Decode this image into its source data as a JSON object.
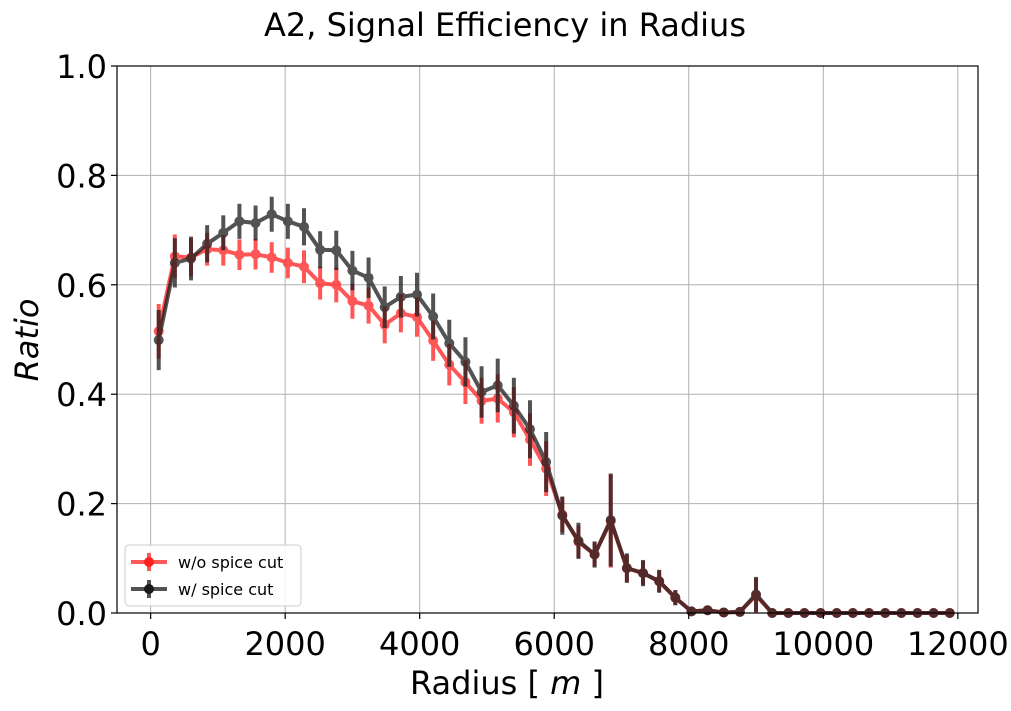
{
  "chart_data": {
    "type": "line",
    "title": "A2, Signal Efficiency in Radius",
    "xlabel_pre": "Radius [ ",
    "xlabel_unit": "m",
    "xlabel_post": " ]",
    "ylabel": "Ratio",
    "xlim": [
      -500,
      12300
    ],
    "ylim": [
      0,
      1.0
    ],
    "xticks": [
      0,
      2000,
      4000,
      6000,
      8000,
      10000,
      12000
    ],
    "xtick_labels": [
      "0",
      "2000",
      "4000",
      "6000",
      "8000",
      "10000",
      "12000"
    ],
    "yticks": [
      0.0,
      0.2,
      0.4,
      0.6,
      0.8,
      1.0
    ],
    "ytick_labels": [
      "0.0",
      "0.2",
      "0.4",
      "0.6",
      "0.8",
      "1.0"
    ],
    "grid": true,
    "legend_position": "lower-left",
    "x": [
      120,
      360,
      600,
      840,
      1080,
      1320,
      1560,
      1800,
      2040,
      2280,
      2520,
      2760,
      3000,
      3240,
      3480,
      3720,
      3960,
      4200,
      4440,
      4680,
      4920,
      5160,
      5400,
      5640,
      5880,
      6120,
      6360,
      6600,
      6840,
      7080,
      7320,
      7560,
      7800,
      8040,
      8280,
      8520,
      8760,
      9000,
      9240,
      9480,
      9720,
      9960,
      10200,
      10440,
      10680,
      10920,
      11160,
      11400,
      11640,
      11880
    ],
    "series": [
      {
        "name": "w/o spice cut",
        "color": "#ff2020",
        "values": [
          0.515,
          0.652,
          0.65,
          0.665,
          0.663,
          0.655,
          0.656,
          0.65,
          0.64,
          0.633,
          0.603,
          0.6,
          0.57,
          0.562,
          0.527,
          0.548,
          0.541,
          0.498,
          0.454,
          0.422,
          0.388,
          0.392,
          0.367,
          0.317,
          0.264,
          0.18,
          0.13,
          0.107,
          0.168,
          0.082,
          0.073,
          0.058,
          0.028,
          0.003,
          0.005,
          0.001,
          0.002,
          0.032,
          0.0,
          0.0,
          0.0,
          0.0,
          0.0,
          0.0,
          0.0,
          0.0,
          0.0,
          0.0,
          0.0,
          0.0
        ],
        "errors": [
          0.05,
          0.04,
          0.035,
          0.03,
          0.028,
          0.028,
          0.028,
          0.028,
          0.028,
          0.03,
          0.03,
          0.032,
          0.032,
          0.033,
          0.034,
          0.035,
          0.036,
          0.037,
          0.038,
          0.04,
          0.042,
          0.044,
          0.046,
          0.048,
          0.05,
          0.032,
          0.03,
          0.022,
          0.085,
          0.025,
          0.022,
          0.02,
          0.013,
          0.004,
          0.005,
          0.002,
          0.003,
          0.032,
          0.0,
          0.0,
          0.0,
          0.0,
          0.0,
          0.0,
          0.0,
          0.0,
          0.0,
          0.0,
          0.0,
          0.0
        ]
      },
      {
        "name": "w/ spice cut",
        "color": "#1a1a1a",
        "values": [
          0.499,
          0.64,
          0.648,
          0.675,
          0.695,
          0.716,
          0.713,
          0.729,
          0.716,
          0.706,
          0.664,
          0.663,
          0.626,
          0.613,
          0.559,
          0.578,
          0.582,
          0.542,
          0.493,
          0.459,
          0.404,
          0.416,
          0.379,
          0.336,
          0.276,
          0.178,
          0.132,
          0.107,
          0.17,
          0.082,
          0.073,
          0.058,
          0.028,
          0.003,
          0.005,
          0.001,
          0.002,
          0.034,
          0.0,
          0.0,
          0.0,
          0.0,
          0.0,
          0.0,
          0.0,
          0.0,
          0.0,
          0.0,
          0.0,
          0.0
        ],
        "errors": [
          0.055,
          0.045,
          0.04,
          0.034,
          0.032,
          0.032,
          0.032,
          0.032,
          0.032,
          0.034,
          0.034,
          0.036,
          0.036,
          0.037,
          0.038,
          0.038,
          0.04,
          0.042,
          0.043,
          0.045,
          0.047,
          0.049,
          0.051,
          0.053,
          0.055,
          0.035,
          0.033,
          0.024,
          0.085,
          0.027,
          0.024,
          0.021,
          0.014,
          0.004,
          0.005,
          0.002,
          0.003,
          0.032,
          0.0,
          0.0,
          0.0,
          0.0,
          0.0,
          0.0,
          0.0,
          0.0,
          0.0,
          0.0,
          0.0,
          0.0
        ]
      }
    ]
  }
}
